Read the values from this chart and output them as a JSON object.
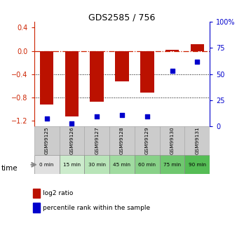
{
  "title": "GDS2585 / 756",
  "samples": [
    "GSM99125",
    "GSM99126",
    "GSM99127",
    "GSM99128",
    "GSM99129",
    "GSM99130",
    "GSM99131"
  ],
  "time_labels": [
    "0 min",
    "15 min",
    "30 min",
    "45 min",
    "60 min",
    "75 min",
    "90 min"
  ],
  "time_colors": [
    "#e0e0e0",
    "#ccebcc",
    "#b8e4b8",
    "#a0dba0",
    "#88d188",
    "#6fc76f",
    "#55bd55"
  ],
  "log2_ratio": [
    -0.92,
    -1.12,
    -0.87,
    -0.52,
    -0.72,
    0.02,
    0.11
  ],
  "percentile_rank": [
    8,
    3,
    10,
    11,
    10,
    53,
    62
  ],
  "ylim_left": [
    -1.3,
    0.5
  ],
  "ylim_right": [
    0,
    100
  ],
  "left_ticks": [
    0.4,
    0.0,
    -0.4,
    -0.8,
    -1.2
  ],
  "right_ticks": [
    100,
    75,
    50,
    25,
    0
  ],
  "left_color": "#cc2200",
  "right_color": "#0000cc",
  "bar_color": "#bb1100",
  "dot_color": "#0000cc",
  "bar_width": 0.55,
  "zero_line_color": "#cc2200",
  "bg_plot": "#ffffff",
  "bg_header": "#cccccc",
  "legend_bar_label": "log2 ratio",
  "legend_dot_label": "percentile rank within the sample",
  "time_arrow_label": "time"
}
